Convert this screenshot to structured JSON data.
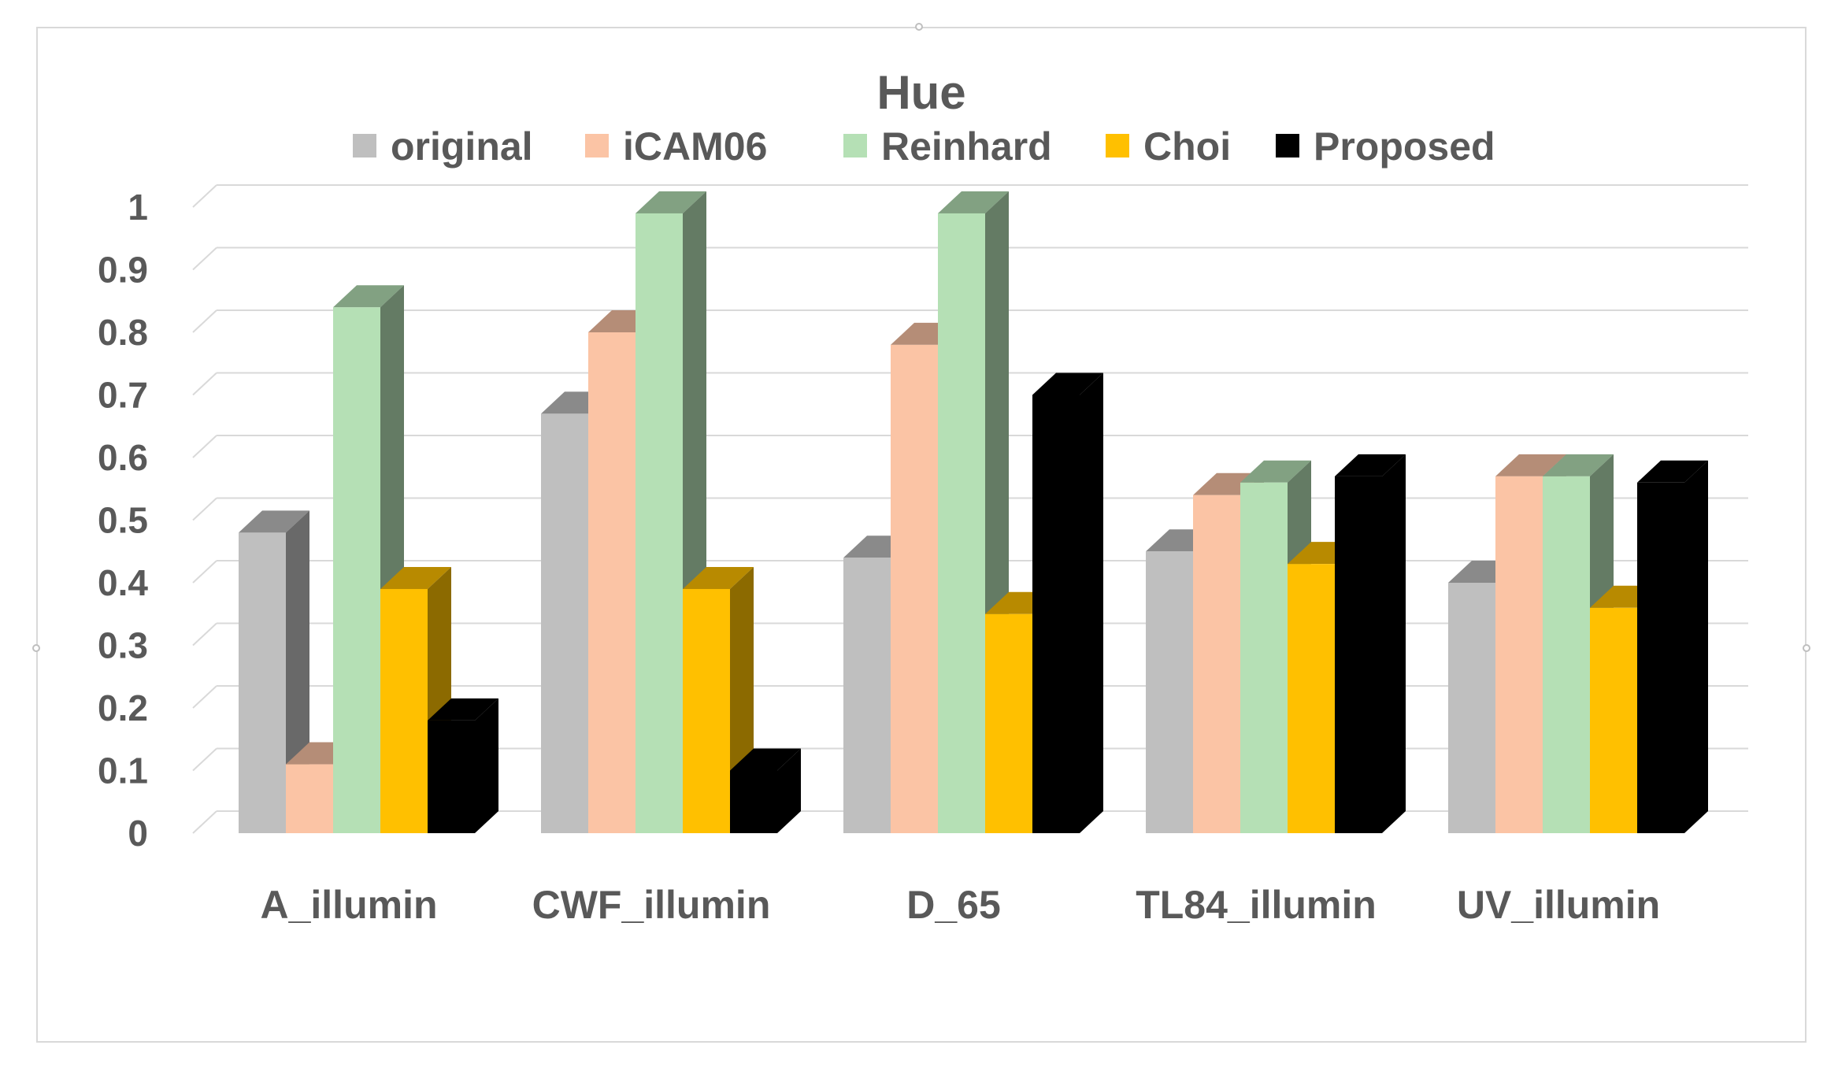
{
  "chart_data": {
    "type": "bar",
    "title": "Hue",
    "categories": [
      "A_illumin",
      "CWF_illumin",
      "D_65",
      "TL84_illumin",
      "UV_illumin"
    ],
    "series": [
      {
        "name": "original",
        "color": "#bfbfbf",
        "values": [
          0.48,
          0.67,
          0.44,
          0.45,
          0.4
        ]
      },
      {
        "name": "iCAM06",
        "color": "#fbc4a5",
        "values": [
          0.11,
          0.8,
          0.78,
          0.54,
          0.57
        ]
      },
      {
        "name": "Reinhard",
        "color": "#b5e0b5",
        "values": [
          0.84,
          0.99,
          0.99,
          0.56,
          0.57
        ]
      },
      {
        "name": "Choi",
        "color": "#ffc000",
        "values": [
          0.39,
          0.39,
          0.35,
          0.43,
          0.36
        ]
      },
      {
        "name": "Proposed",
        "color": "#000000",
        "values": [
          0.18,
          0.1,
          0.7,
          0.57,
          0.56
        ]
      }
    ],
    "y_ticks": [
      "0",
      "0.1",
      "0.2",
      "0.3",
      "0.4",
      "0.5",
      "0.6",
      "0.7",
      "0.8",
      "0.9",
      "1"
    ],
    "ylim": [
      0,
      1
    ],
    "grid": true,
    "legend_position": "top",
    "style": "3d-column"
  }
}
